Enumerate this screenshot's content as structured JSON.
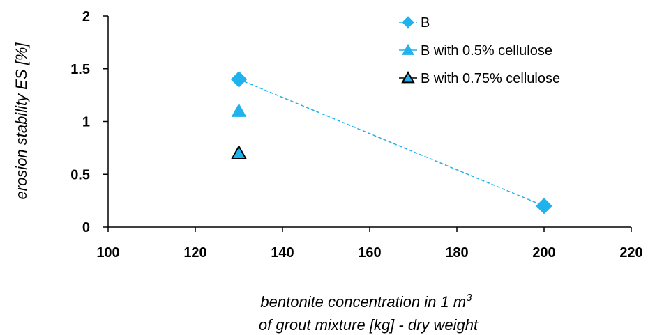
{
  "chart_data": {
    "type": "scatter",
    "title": "",
    "ylabel": "erosion stability ES [%]",
    "xlabel_lines": [
      "bentonite concentration in 1 m",
      "of grout mixture [kg] - dry weight"
    ],
    "xlabel_superscript": "3",
    "xlim": [
      100,
      220
    ],
    "ylim": [
      0,
      2
    ],
    "x_ticks": [
      100,
      120,
      140,
      160,
      180,
      200,
      220
    ],
    "y_ticks": [
      0,
      0.5,
      1,
      1.5,
      2
    ],
    "x_tick_labels": [
      "100",
      "120",
      "140",
      "160",
      "180",
      "200",
      "220"
    ],
    "y_tick_labels": [
      "0",
      "0.5",
      "1",
      "1.5",
      "2"
    ],
    "grid": false,
    "legend_position": "top-right",
    "series": [
      {
        "name": "B",
        "marker": "diamond",
        "color": "#1FB2EC",
        "line": "dashed",
        "points": [
          [
            130,
            1.4
          ],
          [
            200,
            0.2
          ]
        ]
      },
      {
        "name": "B with 0.5% cellulose",
        "marker": "triangle",
        "color": "#1FB2EC",
        "line": "none",
        "points": [
          [
            130,
            1.1
          ]
        ]
      },
      {
        "name": "B with 0.75% cellulose",
        "marker": "triangle-outlined",
        "color": "#1FB2EC",
        "edge_color": "#000000",
        "line": "none",
        "points": [
          [
            130,
            0.7
          ]
        ]
      }
    ]
  }
}
